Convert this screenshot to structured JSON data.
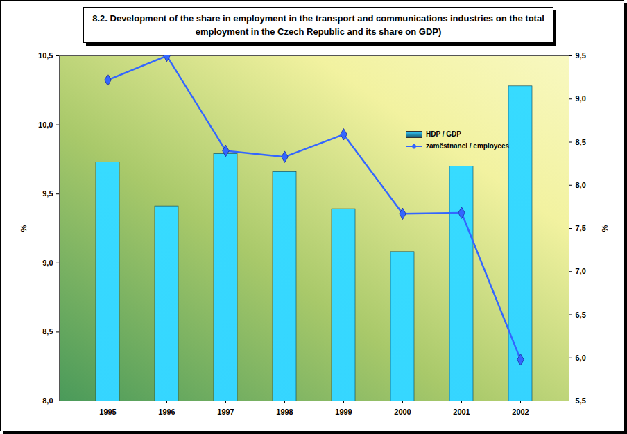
{
  "chart_data": {
    "type": "bar",
    "title": "8.2. Development of the share in employment in the transport and communications industries on the total employment in the Czech Republic and its share on GDP)",
    "categories": [
      "1995",
      "1996",
      "1997",
      "1998",
      "1999",
      "2000",
      "2001",
      "2002"
    ],
    "series": [
      {
        "name": "HDP / GDP",
        "type": "bar",
        "color": "#33ccff",
        "values": [
          9.73,
          9.41,
          9.79,
          9.66,
          9.39,
          9.08,
          9.7,
          10.28
        ]
      },
      {
        "name": "zaměstnanci / employees",
        "type": "line",
        "axis": "y2",
        "color": "#3366ff",
        "marker": "diamond",
        "values": [
          9.22,
          9.5,
          8.4,
          8.33,
          8.59,
          7.67,
          7.68,
          5.98
        ]
      }
    ],
    "y_label": "%",
    "y2_label": "%",
    "ylim": [
      8.0,
      10.5
    ],
    "yticks": [
      {
        "value": 8.0,
        "label": "8,0"
      },
      {
        "value": 8.5,
        "label": "8,5"
      },
      {
        "value": 9.0,
        "label": "9,0"
      },
      {
        "value": 9.5,
        "label": "9,5"
      },
      {
        "value": 10.0,
        "label": "10,0"
      },
      {
        "value": 10.5,
        "label": "10,5"
      }
    ],
    "y2lim": [
      5.5,
      9.5
    ],
    "y2ticks": [
      {
        "value": 5.5,
        "label": "5,5"
      },
      {
        "value": 6.0,
        "label": "6,0"
      },
      {
        "value": 6.5,
        "label": "6,5"
      },
      {
        "value": 7.0,
        "label": "7,0"
      },
      {
        "value": 7.5,
        "label": "7,5"
      },
      {
        "value": 8.0,
        "label": "8,0"
      },
      {
        "value": 8.5,
        "label": "8,5"
      },
      {
        "value": 9.0,
        "label": "9,0"
      },
      {
        "value": 9.5,
        "label": "9,5"
      }
    ],
    "legend": "upper right"
  }
}
